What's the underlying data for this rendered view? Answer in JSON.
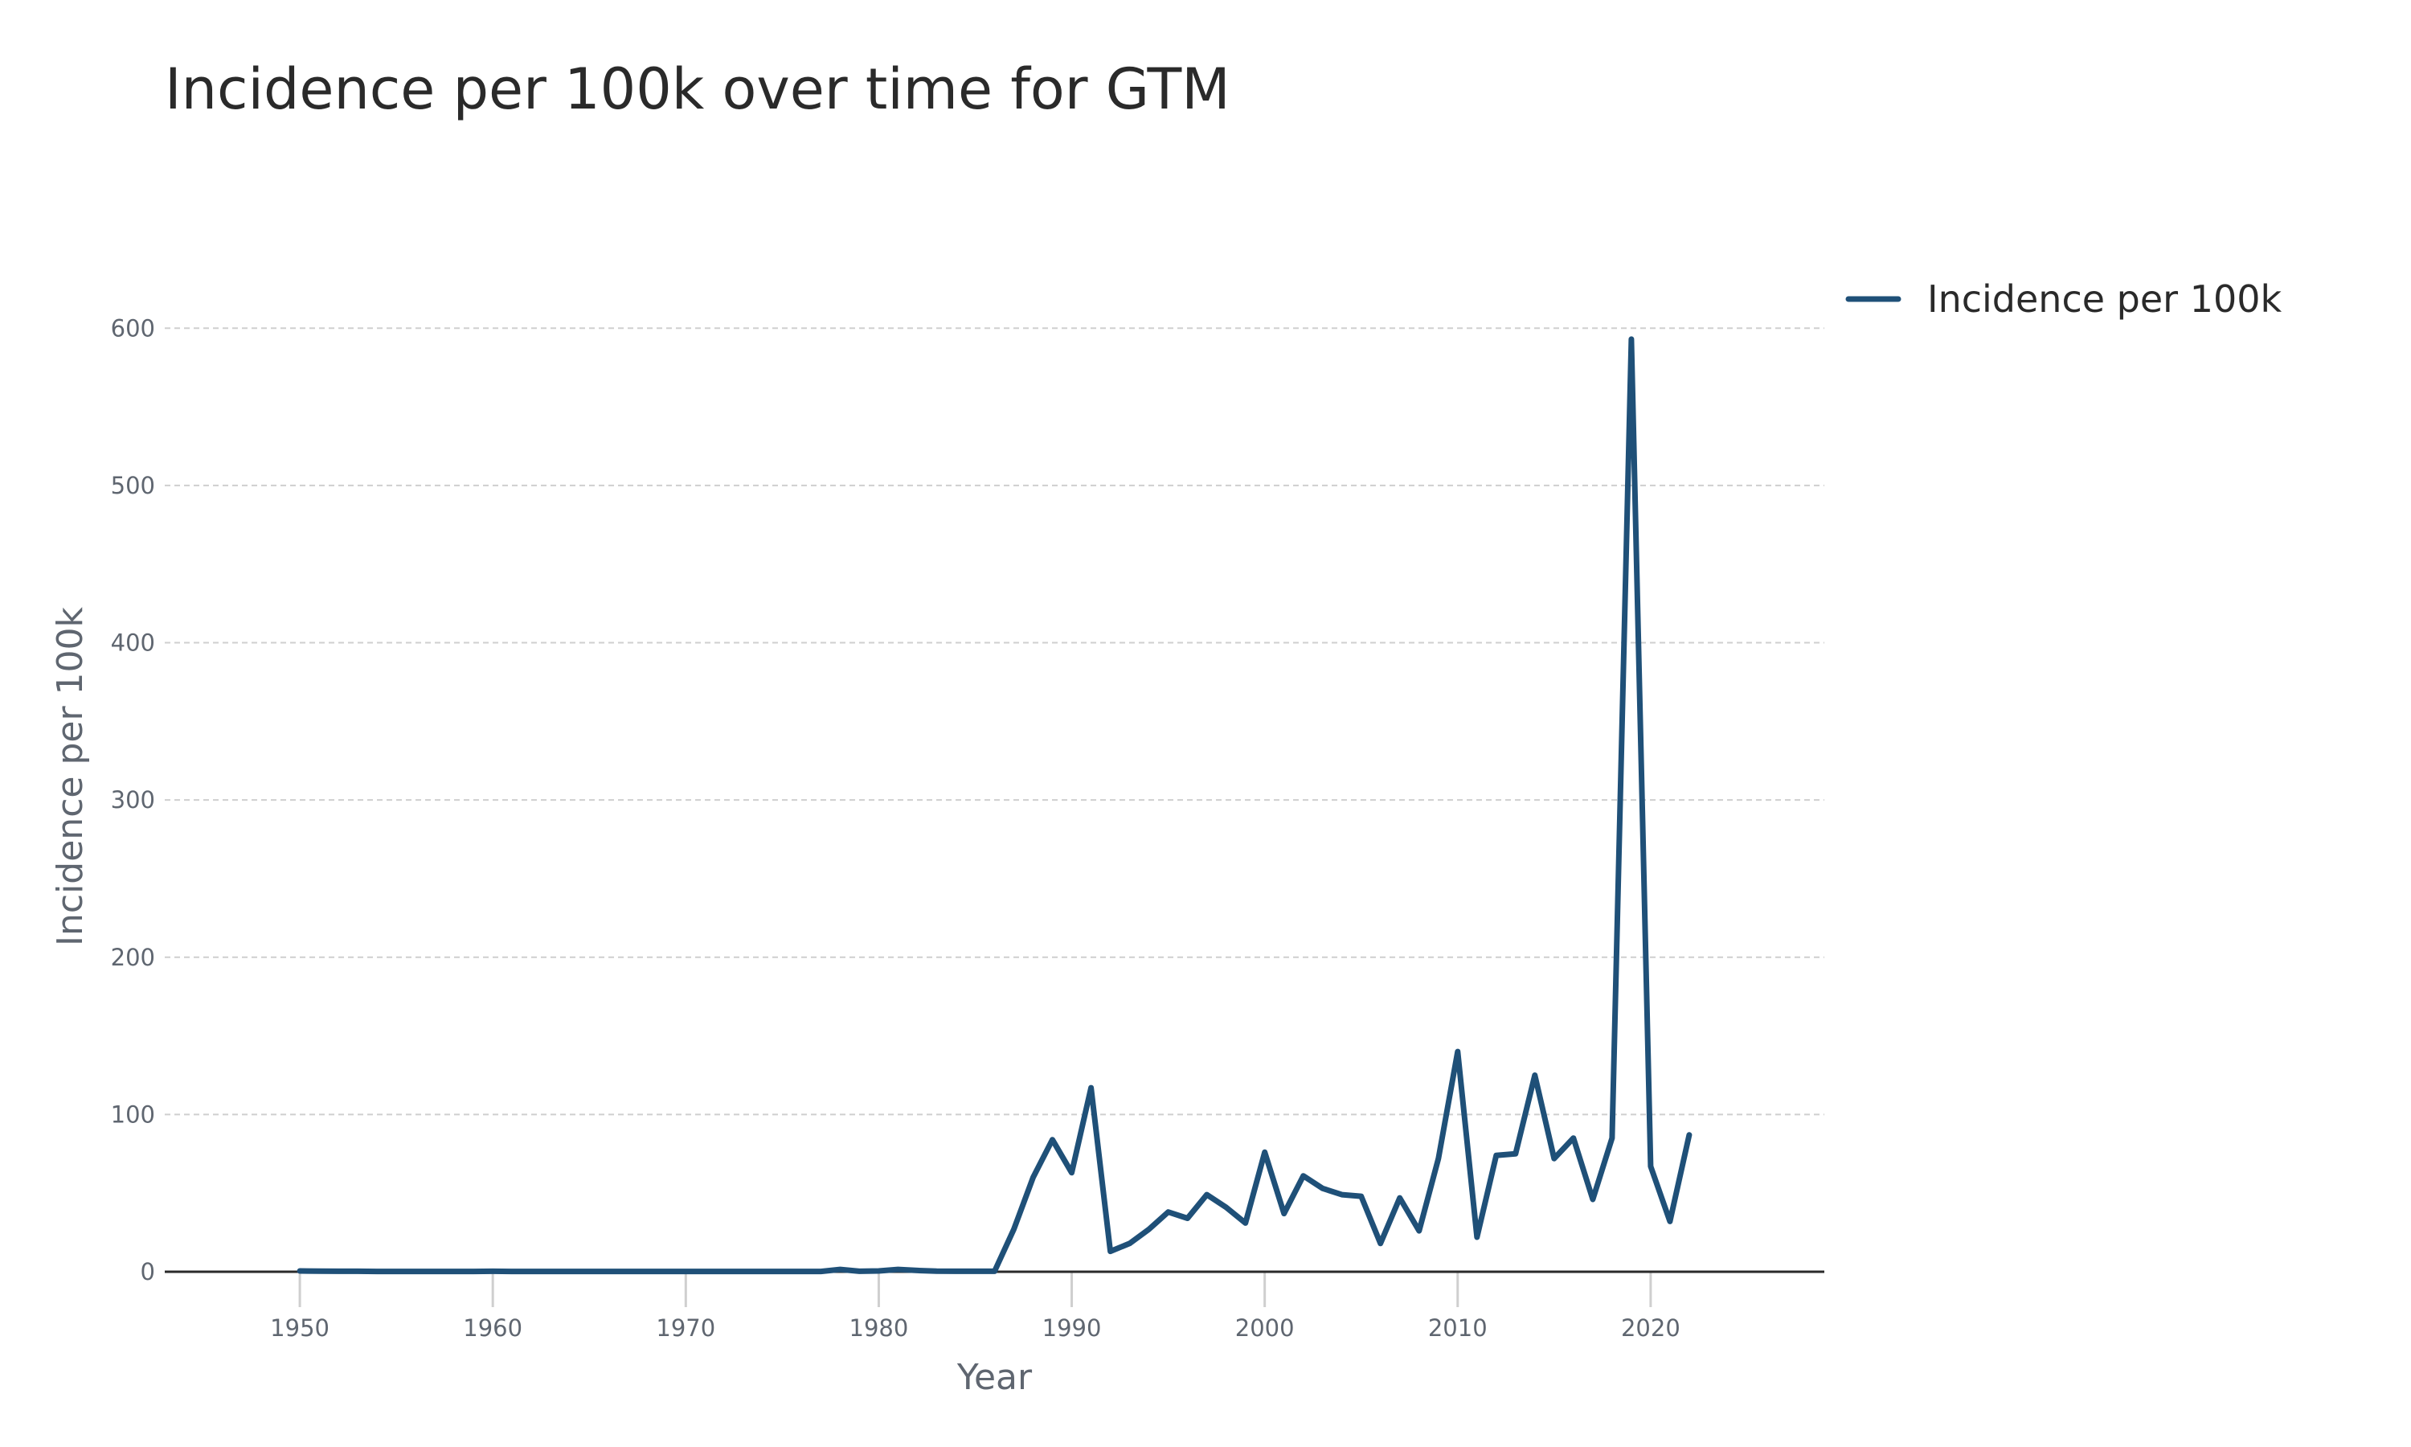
{
  "chart_data": {
    "type": "line",
    "title": "Incidence per 100k over time for GTM",
    "xlabel": "Year",
    "ylabel": "Incidence per 100k",
    "xlim": [
      1943,
      2029
    ],
    "ylim": [
      0,
      640
    ],
    "xticks": [
      1950,
      1960,
      1970,
      1980,
      1990,
      2000,
      2010,
      2020
    ],
    "yticks": [
      0,
      100,
      200,
      300,
      400,
      500,
      600
    ],
    "grid": true,
    "legend_position": "top-right-outside",
    "series": [
      {
        "name": "Incidence per 100k",
        "color": "#1f5078",
        "x": [
          1950,
          1951,
          1952,
          1953,
          1954,
          1955,
          1956,
          1957,
          1958,
          1959,
          1960,
          1961,
          1962,
          1963,
          1964,
          1965,
          1966,
          1967,
          1968,
          1969,
          1970,
          1971,
          1972,
          1973,
          1974,
          1975,
          1976,
          1977,
          1978,
          1979,
          1980,
          1981,
          1982,
          1983,
          1984,
          1985,
          1986,
          1987,
          1988,
          1989,
          1990,
          1991,
          1992,
          1993,
          1994,
          1995,
          1996,
          1997,
          1998,
          1999,
          2000,
          2001,
          2002,
          2003,
          2004,
          2005,
          2006,
          2007,
          2008,
          2009,
          2010,
          2011,
          2012,
          2013,
          2014,
          2015,
          2016,
          2017,
          2018,
          2019,
          2020,
          2021,
          2022
        ],
        "values": [
          0.5,
          0.4,
          0.3,
          0.3,
          0.2,
          0.2,
          0.2,
          0.2,
          0.2,
          0.2,
          0.3,
          0.2,
          0.2,
          0.2,
          0.2,
          0.2,
          0.2,
          0.2,
          0.2,
          0.2,
          0.2,
          0.2,
          0.2,
          0.2,
          0.2,
          0.2,
          0.2,
          0.2,
          1.5,
          0.3,
          0.5,
          1.5,
          0.8,
          0.4,
          0.3,
          0.3,
          0.3,
          27,
          60,
          84,
          63,
          117,
          13,
          18,
          27,
          38,
          34,
          49,
          41,
          31,
          76,
          37,
          61,
          53,
          49,
          48,
          18,
          47,
          26,
          72,
          140,
          22,
          74,
          75,
          125,
          72,
          85,
          46,
          85,
          593,
          67,
          32,
          87
        ]
      }
    ]
  }
}
